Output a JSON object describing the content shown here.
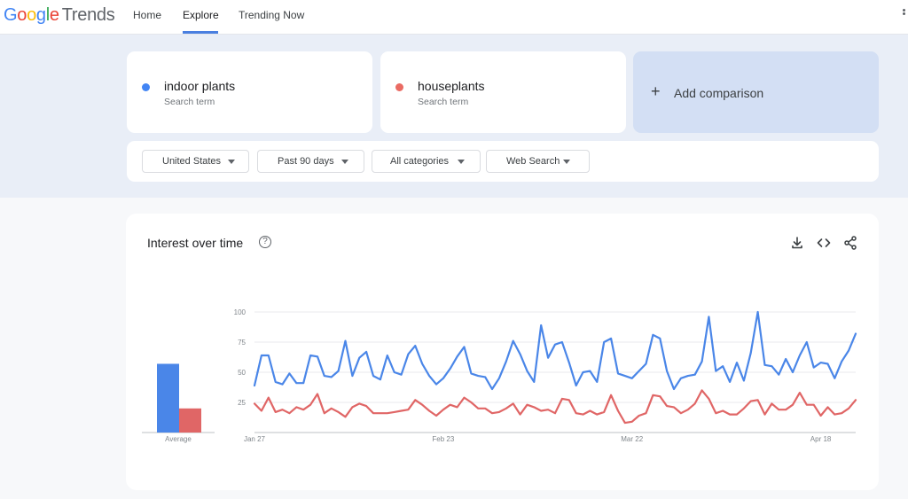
{
  "app": {
    "logo_google": "Google",
    "logo_trends": "Trends",
    "nav": [
      {
        "label": "Home",
        "active": false
      },
      {
        "label": "Explore",
        "active": true
      },
      {
        "label": "Trending Now",
        "active": false
      }
    ]
  },
  "terms": [
    {
      "name": "indoor plants",
      "sub": "Search term",
      "color": "#4285f4"
    },
    {
      "name": "houseplants",
      "sub": "Search term",
      "color": "#ea6b63"
    }
  ],
  "add_comparison": {
    "label": "Add comparison",
    "icon": "plus-icon"
  },
  "filters": [
    {
      "label": "United States"
    },
    {
      "label": "Past 90 days"
    },
    {
      "label": "All categories"
    },
    {
      "label": "Web Search"
    }
  ],
  "panel": {
    "title": "Interest over time",
    "help_icon": "help-circle-icon",
    "tools": [
      "download-icon",
      "embed-code-icon",
      "share-icon"
    ]
  },
  "colors": {
    "series1": "#4a86e8",
    "series2": "#e06666"
  },
  "chart_data": {
    "type": "line",
    "title": "Interest over time",
    "ylim": [
      0,
      100
    ],
    "yticks": [
      "100",
      "75",
      "50",
      "25"
    ],
    "grid": true,
    "xtick_labels": [
      {
        "label": "Jan 27",
        "index": 0
      },
      {
        "label": "Feb 23",
        "index": 27
      },
      {
        "label": "Mar 22",
        "index": 54
      },
      {
        "label": "Apr 18",
        "index": 81
      }
    ],
    "average": {
      "label": "Average",
      "values": [
        57,
        20
      ]
    },
    "series": [
      {
        "name": "indoor plants",
        "color": "#4a86e8",
        "values": [
          39,
          64,
          64,
          42,
          40,
          49,
          41,
          41,
          64,
          63,
          47,
          46,
          51,
          76,
          47,
          62,
          67,
          47,
          44,
          64,
          50,
          48,
          65,
          72,
          57,
          47,
          40,
          45,
          53,
          63,
          71,
          49,
          47,
          46,
          36,
          45,
          59,
          76,
          65,
          51,
          42,
          89,
          62,
          73,
          75,
          58,
          39,
          50,
          51,
          42,
          75,
          78,
          49,
          47,
          45,
          51,
          57,
          81,
          78,
          51,
          36,
          45,
          47,
          48,
          59,
          96,
          51,
          55,
          42,
          58,
          43,
          66,
          100,
          56,
          55,
          48,
          61,
          50,
          64,
          75,
          54,
          58,
          57,
          45,
          59,
          68,
          82
        ]
      },
      {
        "name": "houseplants",
        "color": "#e06666",
        "values": [
          24,
          18,
          29,
          17,
          19,
          16,
          21,
          19,
          23,
          32,
          16,
          20,
          17,
          13,
          21,
          24,
          22,
          16,
          16,
          16,
          17,
          18,
          19,
          27,
          23,
          18,
          14,
          19,
          23,
          21,
          29,
          25,
          20,
          20,
          16,
          17,
          20,
          24,
          15,
          23,
          21,
          18,
          19,
          16,
          28,
          27,
          16,
          15,
          18,
          15,
          17,
          31,
          18,
          8,
          9,
          14,
          16,
          31,
          30,
          22,
          21,
          16,
          19,
          24,
          35,
          28,
          16,
          18,
          15,
          15,
          20,
          26,
          27,
          15,
          24,
          19,
          19,
          23,
          33,
          23,
          23,
          14,
          21,
          15,
          16,
          20,
          27
        ]
      }
    ]
  }
}
